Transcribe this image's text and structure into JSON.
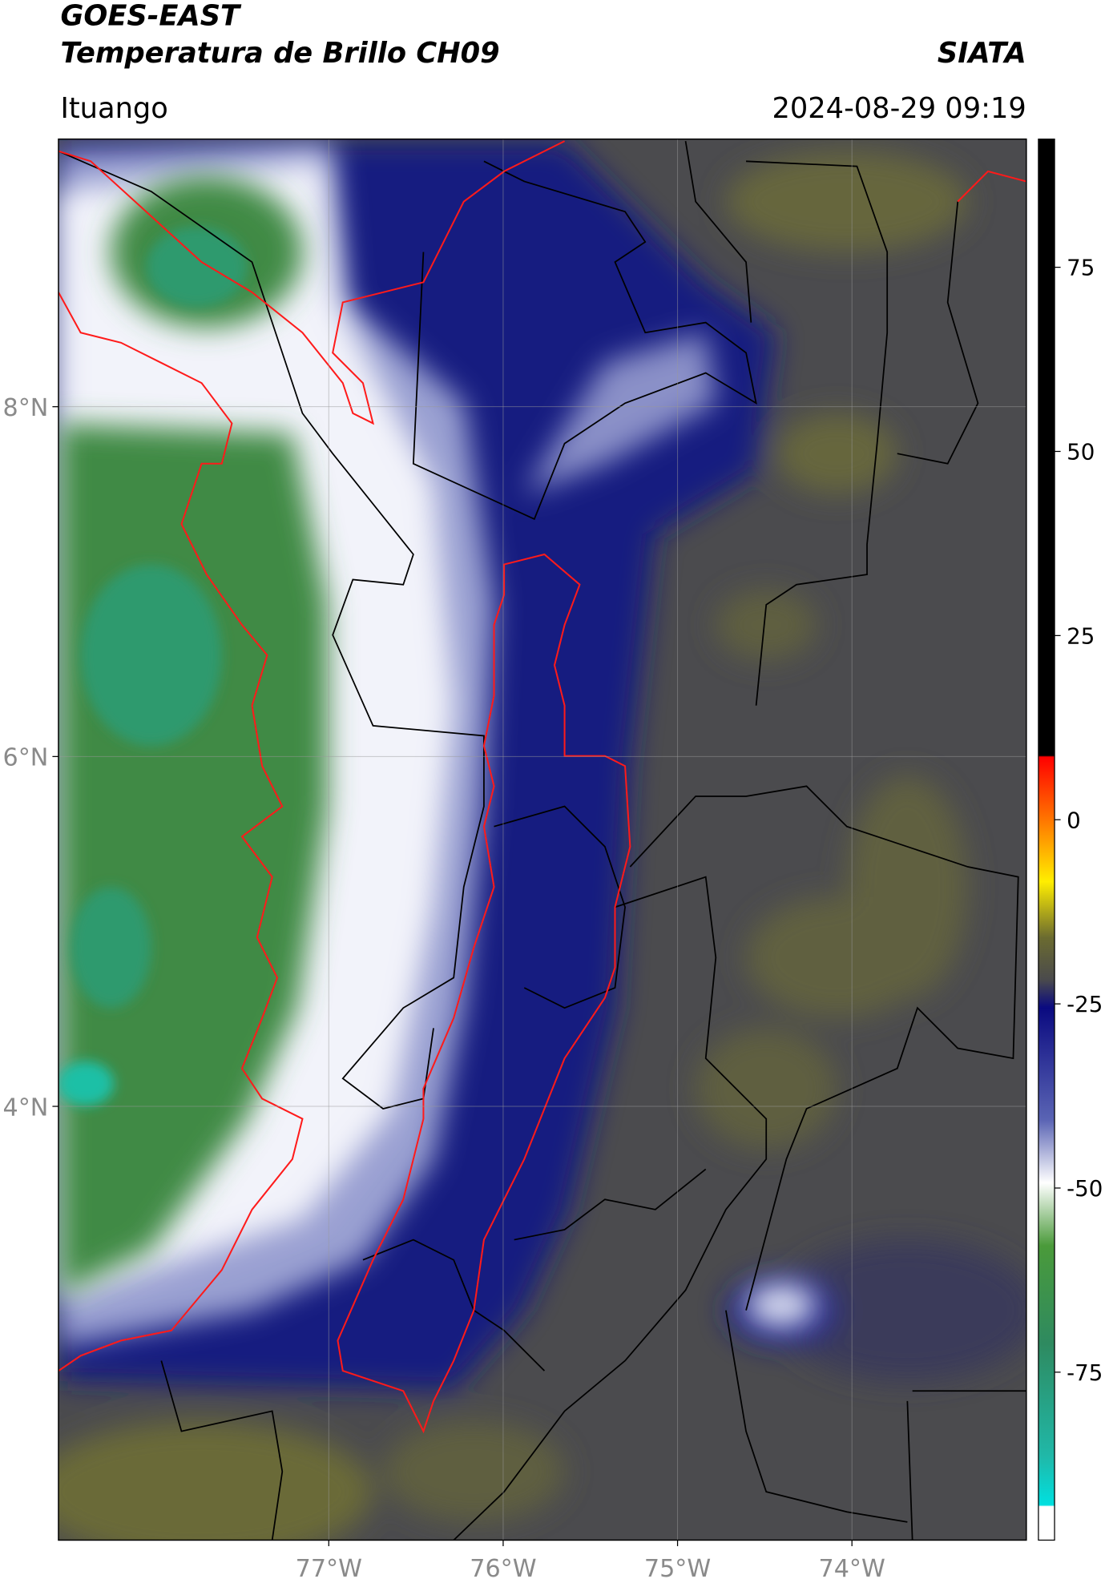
{
  "header": {
    "title": "GOES-EAST",
    "subtitle": "Temperatura de Brillo CH09",
    "source": "SIATA",
    "region": "Ituango",
    "timestamp": "2024-08-29 09:19"
  },
  "map": {
    "xlim": [
      -78.55,
      -73.0
    ],
    "ylim": [
      1.52,
      9.53
    ],
    "xticks": [
      {
        "value": -77,
        "label": "77°W"
      },
      {
        "value": -76,
        "label": "76°W"
      },
      {
        "value": -75,
        "label": "75°W"
      },
      {
        "value": -74,
        "label": "74°W"
      }
    ],
    "yticks": [
      {
        "value": 8,
        "label": "8°N"
      },
      {
        "value": 6,
        "label": "6°N"
      },
      {
        "value": 4,
        "label": "4°N"
      }
    ],
    "grid": true
  },
  "colorbar": {
    "lim": [
      -97.8,
      92.4
    ],
    "ticks": [
      75,
      50,
      25,
      0,
      -25,
      -50,
      -75
    ]
  }
}
